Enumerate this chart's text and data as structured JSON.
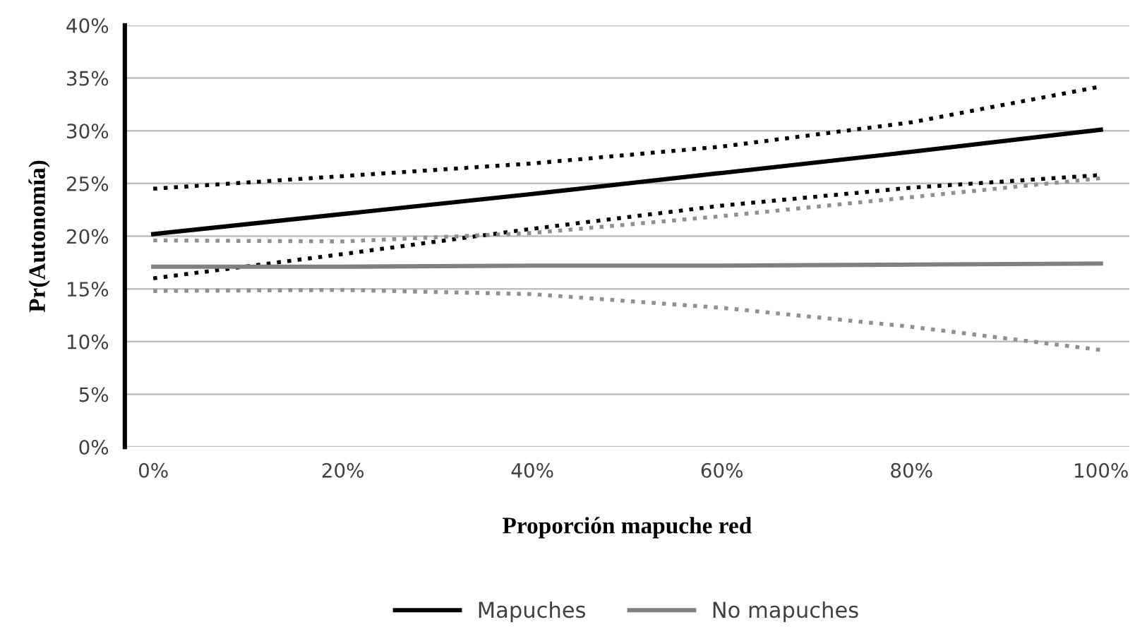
{
  "chart_data": {
    "type": "line",
    "xlabel": "Proporción mapuche red",
    "ylabel": "Pr(Autonomía)",
    "xlim": [
      -3,
      103
    ],
    "ylim": [
      0,
      40
    ],
    "xticks": [
      {
        "value": 0,
        "label": "0%"
      },
      {
        "value": 20,
        "label": "20%"
      },
      {
        "value": 40,
        "label": "40%"
      },
      {
        "value": 60,
        "label": "60%"
      },
      {
        "value": 80,
        "label": "80%"
      },
      {
        "value": 100,
        "label": "100%"
      }
    ],
    "yticks": [
      {
        "value": 0,
        "label": "0%"
      },
      {
        "value": 5,
        "label": "5%"
      },
      {
        "value": 10,
        "label": "10%"
      },
      {
        "value": 15,
        "label": "15%"
      },
      {
        "value": 20,
        "label": "20%"
      },
      {
        "value": 25,
        "label": "25%"
      },
      {
        "value": 30,
        "label": "30%"
      },
      {
        "value": 35,
        "label": "35%"
      },
      {
        "value": 40,
        "label": "40%"
      }
    ],
    "x": [
      0,
      20,
      40,
      60,
      80,
      100
    ],
    "grid": "y",
    "legend": "bottom",
    "marker": "none",
    "series": [
      {
        "name": "Mapuches",
        "color": "#000000",
        "line_style": "solid",
        "values": [
          20.2,
          22.1,
          24.0,
          26.0,
          28.0,
          30.1
        ]
      },
      {
        "color": "#000000",
        "line_style": "dotted",
        "values": [
          24.5,
          25.7,
          26.9,
          28.5,
          30.8,
          34.2
        ]
      },
      {
        "color": "#000000",
        "line_style": "dotted",
        "values": [
          16.0,
          18.3,
          20.7,
          22.9,
          24.6,
          25.8
        ]
      },
      {
        "name": "No mapuches",
        "color": "#808080",
        "line_style": "solid",
        "values": [
          17.1,
          17.1,
          17.2,
          17.2,
          17.3,
          17.4
        ]
      },
      {
        "color": "#909090",
        "line_style": "dotted",
        "values": [
          19.6,
          19.5,
          20.3,
          21.9,
          23.7,
          25.5
        ]
      },
      {
        "color": "#909090",
        "line_style": "dotted",
        "values": [
          14.8,
          14.9,
          14.5,
          13.2,
          11.4,
          9.2
        ]
      }
    ]
  }
}
